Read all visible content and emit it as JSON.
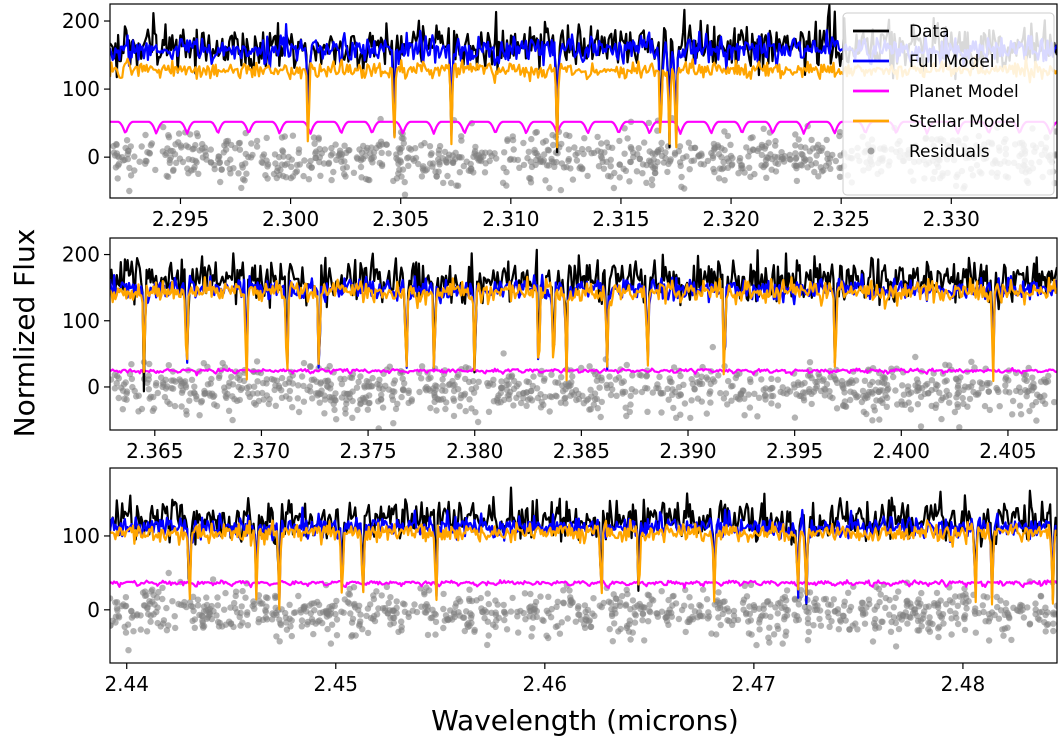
{
  "figure": {
    "ylabel": "Normlized Flux",
    "xlabel": "Wavelength (microns)"
  },
  "legend": {
    "placement": "top-right of first panel",
    "items": [
      {
        "label": "Data",
        "color": "#000000",
        "marker": "line"
      },
      {
        "label": "Full Model",
        "color": "#0000ff",
        "marker": "line"
      },
      {
        "label": "Planet Model",
        "color": "#ff00ff",
        "marker": "line"
      },
      {
        "label": "Stellar Model",
        "color": "#ffa500",
        "marker": "line"
      },
      {
        "label": "Residuals",
        "color": "#808080",
        "marker": "dot"
      }
    ]
  },
  "chart_data": [
    {
      "type": "line",
      "xlim": [
        2.2918,
        2.3348
      ],
      "ylim": [
        -60,
        225
      ],
      "xticks": [
        2.295,
        2.3,
        2.305,
        2.31,
        2.315,
        2.32,
        2.325,
        2.33
      ],
      "xtick_labels": [
        "2.295",
        "2.300",
        "2.305",
        "2.310",
        "2.315",
        "2.320",
        "2.325",
        "2.330"
      ],
      "yticks": [
        0,
        100,
        200
      ],
      "ytick_labels": [
        "0",
        "100",
        "200"
      ],
      "series": [
        {
          "name": "Data",
          "color": "#000000",
          "level": 162,
          "noise": 16,
          "spikes": 14
        },
        {
          "name": "Full Model",
          "color": "#0000ff",
          "level": 158,
          "noise": 10,
          "spikes": 0
        },
        {
          "name": "Planet Model",
          "color": "#ff00ff",
          "level": 52,
          "noise": 0,
          "periodic_dip": 18,
          "period": 0.0014
        },
        {
          "name": "Stellar Model",
          "color": "#ffa500",
          "level": 128,
          "noise": 6,
          "spikes": 0
        },
        {
          "name": "Residuals",
          "color": "#808080",
          "level": 0,
          "noise": 18,
          "scatter": true
        }
      ],
      "absorption_lines": [
        2.3073,
        2.3047,
        2.3121,
        2.3172,
        2.3168,
        2.3175,
        2.3008
      ]
    },
    {
      "type": "line",
      "xlim": [
        2.3629,
        2.4073
      ],
      "ylim": [
        -65,
        225
      ],
      "xticks": [
        2.365,
        2.37,
        2.375,
        2.38,
        2.385,
        2.39,
        2.395,
        2.4,
        2.405
      ],
      "xtick_labels": [
        "2.365",
        "2.370",
        "2.375",
        "2.380",
        "2.385",
        "2.390",
        "2.395",
        "2.400",
        "2.405"
      ],
      "yticks": [
        0,
        100,
        200
      ],
      "ytick_labels": [
        "0",
        "100",
        "200"
      ],
      "series": [
        {
          "name": "Data",
          "color": "#000000",
          "level": 160,
          "noise": 16,
          "spikes": 14
        },
        {
          "name": "Full Model",
          "color": "#0000ff",
          "level": 148,
          "noise": 8,
          "spikes": 0
        },
        {
          "name": "Planet Model",
          "color": "#ff00ff",
          "level": 25,
          "noise": 3,
          "periodic_dip": 4,
          "period": 0.0009
        },
        {
          "name": "Stellar Model",
          "color": "#ffa500",
          "level": 144,
          "noise": 8,
          "spikes": 0
        },
        {
          "name": "Residuals",
          "color": "#808080",
          "level": -5,
          "noise": 18,
          "scatter": true
        }
      ],
      "absorption_lines": [
        2.3645,
        2.3665,
        2.3693,
        2.3712,
        2.3727,
        2.3781,
        2.3837,
        2.3843,
        2.3862,
        2.3881,
        2.3917,
        2.3969,
        2.4043,
        2.3768,
        2.38,
        2.383
      ]
    },
    {
      "type": "line",
      "xlim": [
        2.4392,
        2.4845
      ],
      "ylim": [
        -72,
        192
      ],
      "xticks": [
        2.44,
        2.45,
        2.46,
        2.47,
        2.48
      ],
      "xtick_labels": [
        "2.44",
        "2.45",
        "2.46",
        "2.47",
        "2.48"
      ],
      "yticks": [
        0,
        100
      ],
      "ytick_labels": [
        "0",
        "100"
      ],
      "series": [
        {
          "name": "Data",
          "color": "#000000",
          "level": 122,
          "noise": 14,
          "spikes": 12
        },
        {
          "name": "Full Model",
          "color": "#0000ff",
          "level": 112,
          "noise": 7,
          "spikes": 0
        },
        {
          "name": "Planet Model",
          "color": "#ff00ff",
          "level": 37,
          "noise": 3,
          "periodic_dip": 5,
          "period": 0.0009
        },
        {
          "name": "Stellar Model",
          "color": "#ffa500",
          "level": 104,
          "noise": 6,
          "spikes": 0
        },
        {
          "name": "Residuals",
          "color": "#808080",
          "level": -3,
          "noise": 16,
          "scatter": true
        }
      ],
      "absorption_lines": [
        2.443,
        2.4462,
        2.4473,
        2.4503,
        2.4513,
        2.4548,
        2.4627,
        2.4645,
        2.4681,
        2.4721,
        2.4725,
        2.4806,
        2.4814,
        2.4843
      ]
    }
  ]
}
